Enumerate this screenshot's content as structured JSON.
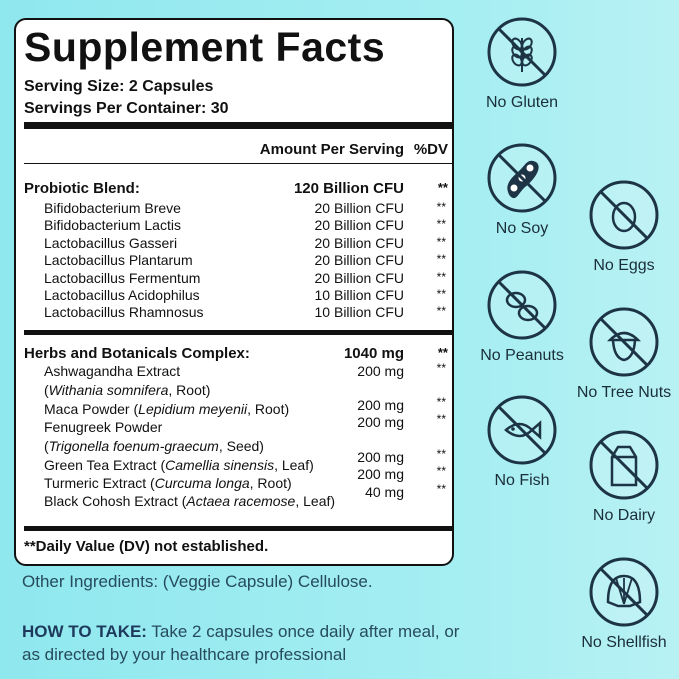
{
  "panel": {
    "title": "Supplement Facts",
    "serving_size": "Serving Size: 2 Capsules",
    "servings_per_container": "Servings Per Container: 30",
    "amount_header": "Amount Per Serving",
    "dv_header": "%DV",
    "probiotic": {
      "name": "Probiotic Blend:",
      "amount": "120 Billion CFU",
      "dv": "**",
      "items": [
        {
          "name": "Bifidobacterium Breve",
          "amount": "20 Billion CFU",
          "dv": "**"
        },
        {
          "name": "Bifidobacterium Lactis",
          "amount": "20 Billion CFU",
          "dv": "**"
        },
        {
          "name": "Lactobacillus Gasseri",
          "amount": "20 Billion CFU",
          "dv": "**"
        },
        {
          "name": "Lactobacillus Plantarum",
          "amount": "20 Billion CFU",
          "dv": "**"
        },
        {
          "name": "Lactobacillus Fermentum",
          "amount": "20 Billion CFU",
          "dv": "**"
        },
        {
          "name": "Lactobacillus Acidophilus",
          "amount": "10 Billion CFU",
          "dv": "**"
        },
        {
          "name": "Lactobacillus Rhamnosus",
          "amount": "10 Billion CFU",
          "dv": "**"
        }
      ]
    },
    "herbs": {
      "name": "Herbs and Botanicals Complex:",
      "amount": "1040 mg",
      "dv": "**",
      "items": [
        {
          "lines": [
            [
              "Ashwagandha Extract"
            ],
            [
              "(",
              "Withania somnifera",
              ", Root)"
            ]
          ],
          "amount": "200 mg",
          "dv": "**"
        },
        {
          "lines": [
            [
              "Maca Powder (",
              "Lepidium meyenii",
              ", Root)"
            ]
          ],
          "amount": "200 mg",
          "dv": "**"
        },
        {
          "lines": [
            [
              "Fenugreek Powder"
            ],
            [
              "(",
              "Trigonella foenum-graecum",
              ", Seed)"
            ]
          ],
          "amount": "200 mg",
          "dv": "**"
        },
        {
          "lines": [
            [
              "Green Tea Extract (",
              "Camellia sinensis",
              ", Leaf)"
            ]
          ],
          "amount": "200 mg",
          "dv": "**"
        },
        {
          "lines": [
            [
              "Turmeric Extract (",
              "Curcuma longa",
              ", Root)"
            ]
          ],
          "amount": "200 mg",
          "dv": "**"
        },
        {
          "lines": [
            [
              "Black Cohosh Extract (",
              "Actaea racemose",
              ", Leaf)"
            ]
          ],
          "amount": "40 mg",
          "dv": "**"
        }
      ]
    },
    "footnote": "**Daily Value (DV) not established."
  },
  "other_ingredients": "Other Ingredients: (Veggie Capsule) Cellulose.",
  "how_to_take": {
    "label": "HOW TO TAKE:",
    "text": "Take 2 capsules once daily after meal, or as directed by your healthcare professional"
  },
  "badges": [
    "No Gluten",
    "No Soy",
    "No Eggs",
    "No Peanuts",
    "No Tree Nuts",
    "No Fish",
    "No Dairy",
    "No Shellfish"
  ]
}
